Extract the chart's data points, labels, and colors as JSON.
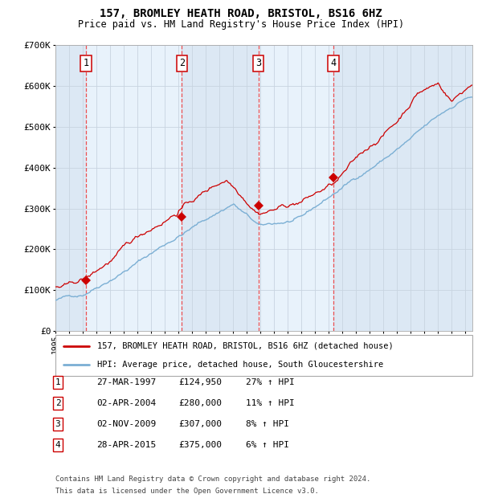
{
  "title": "157, BROMLEY HEATH ROAD, BRISTOL, BS16 6HZ",
  "subtitle": "Price paid vs. HM Land Registry's House Price Index (HPI)",
  "legend_line1": "157, BROMLEY HEATH ROAD, BRISTOL, BS16 6HZ (detached house)",
  "legend_line2": "HPI: Average price, detached house, South Gloucestershire",
  "footer_line1": "Contains HM Land Registry data © Crown copyright and database right 2024.",
  "footer_line2": "This data is licensed under the Open Government Licence v3.0.",
  "transactions": [
    {
      "num": 1,
      "date": "27-MAR-1997",
      "price": 124950,
      "pct": "27%",
      "year": 1997.23
    },
    {
      "num": 2,
      "date": "02-APR-2004",
      "price": 280000,
      "pct": "11%",
      "year": 2004.25
    },
    {
      "num": 3,
      "date": "02-NOV-2009",
      "price": 307000,
      "pct": "8%",
      "year": 2009.84
    },
    {
      "num": 4,
      "date": "28-APR-2015",
      "price": 375000,
      "pct": "6%",
      "year": 2015.32
    }
  ],
  "hpi_color": "#7bafd4",
  "price_color": "#cc0000",
  "marker_color": "#cc0000",
  "dashed_color": "#ee3333",
  "plot_bg": "#e8f0f8",
  "grid_color": "#c8d4e0",
  "ylim": [
    0,
    700000
  ],
  "xlim_start": 1995.0,
  "xlim_end": 2025.5,
  "yticks": [
    0,
    100000,
    200000,
    300000,
    400000,
    500000,
    600000,
    700000
  ],
  "ytick_labels": [
    "£0",
    "£100K",
    "£200K",
    "£300K",
    "£400K",
    "£500K",
    "£600K",
    "£700K"
  ]
}
